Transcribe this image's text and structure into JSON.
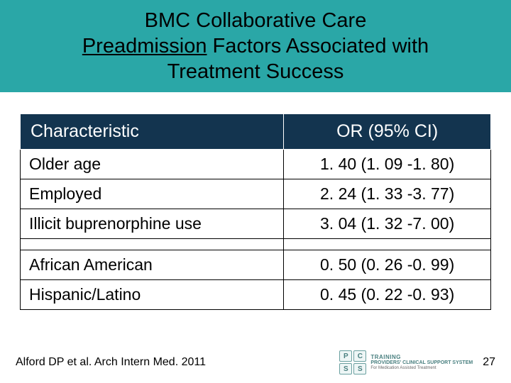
{
  "colors": {
    "title_bg": "#2aa7a7",
    "header_bg": "#13344f",
    "row_bg": "#ffffff",
    "border": "#000000",
    "text": "#000000"
  },
  "title": {
    "line1": "BMC Collaborative Care",
    "underlined_word": "Preadmission",
    "line2_rest": " Factors Associated with",
    "line3": "Treatment Success"
  },
  "table": {
    "columns": [
      "Characteristic",
      "OR (95% CI)"
    ],
    "rows_group1": [
      {
        "label": "Older age",
        "value": "1. 40 (1. 09 -1. 80)"
      },
      {
        "label": "Employed",
        "value": "2. 24 (1. 33 -3. 77)"
      },
      {
        "label": "Illicit buprenorphine use",
        "value": "3. 04 (1. 32 -7. 00)"
      }
    ],
    "rows_group2": [
      {
        "label": "African American",
        "value": "0. 50 (0. 26 -0. 99)"
      },
      {
        "label": "Hispanic/Latino",
        "value": "0. 45 (0. 22 -0. 93)"
      }
    ]
  },
  "footer": {
    "citation": "Alford DP et al. Arch Intern Med. 2011",
    "page": "27",
    "logo": {
      "boxes": [
        "P",
        "C",
        "S",
        "S"
      ],
      "line1": "TRAINING",
      "line2": "PROVIDERS' CLINICAL SUPPORT SYSTEM",
      "line3": "For Medication Assisted Treatment"
    }
  }
}
